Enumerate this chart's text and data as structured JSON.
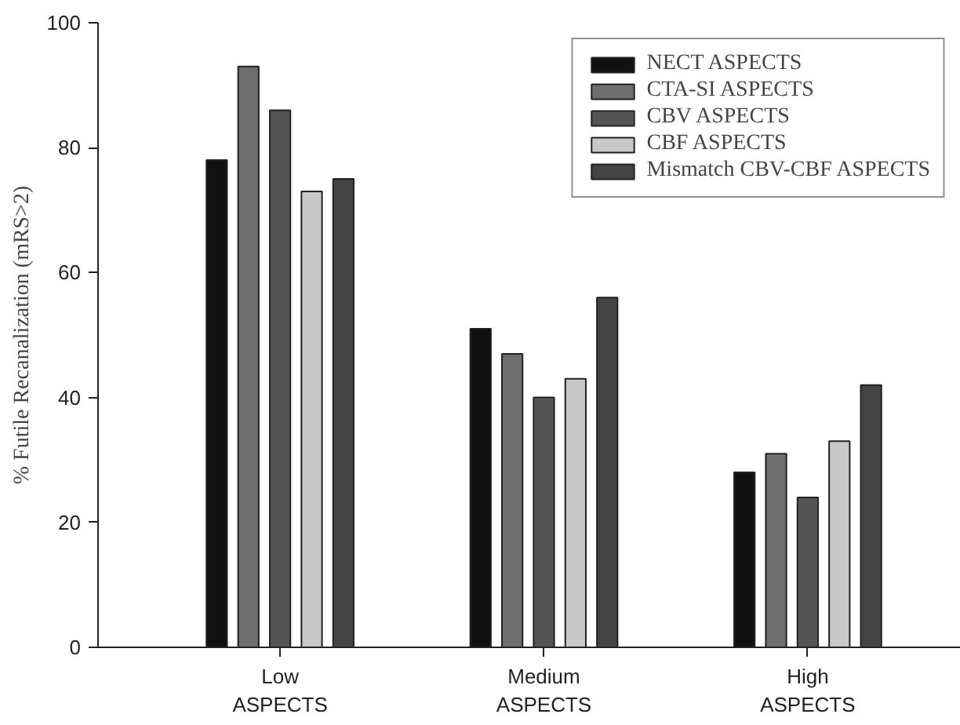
{
  "chart_data": {
    "type": "bar",
    "ylabel": "% Futile Recanalization (mRS>2)",
    "categories": [
      "Low\nASPECTS",
      "Medium\nASPECTS",
      "High\nASPECTS"
    ],
    "series": [
      {
        "name": "NECT ASPECTS",
        "color": "#111111",
        "values": [
          78,
          51,
          28
        ]
      },
      {
        "name": "CTA-SI ASPECTS",
        "color": "#6e6e6e",
        "values": [
          93,
          47,
          31
        ]
      },
      {
        "name": "CBV ASPECTS",
        "color": "#555555",
        "values": [
          86,
          40,
          24
        ]
      },
      {
        "name": "CBF ASPECTS",
        "color": "#c8c8c8",
        "values": [
          73,
          43,
          33
        ]
      },
      {
        "name": "Mismatch CBV-CBF ASPECTS",
        "color": "#444444",
        "values": [
          75,
          56,
          42
        ]
      }
    ],
    "ylim": [
      0,
      100
    ],
    "yticks": [
      0,
      20,
      40,
      60,
      80,
      100
    ],
    "grid": false,
    "legend": "top right"
  }
}
